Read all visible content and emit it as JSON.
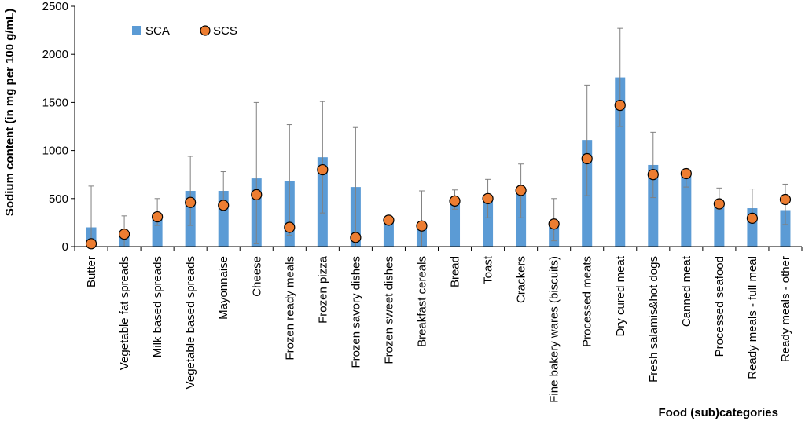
{
  "chart_data": {
    "type": "bar",
    "categories": [
      "Butter",
      "Vegetable fat spreads",
      "Milk based spreads",
      "Vegetable based spreads",
      "Mayonnaise",
      "Cheese",
      "Frozen ready meals",
      "Frozen pizza",
      "Frozen savory dishes",
      "Frozen sweet dishes",
      "Breakfast cereals",
      "Bread",
      "Toast",
      "Crackers",
      "Fine bakery wares (biscuits)",
      "Processed meats",
      "Dry cured meat",
      "Fresh salamis&hot dogs",
      "Canned meat",
      "Processed seafood",
      "Ready meals - full meal",
      "Ready meals - other"
    ],
    "series": [
      {
        "name": "SCA",
        "style": "bar",
        "color": "#5B9BD5",
        "values": [
          200,
          120,
          320,
          580,
          580,
          710,
          680,
          930,
          620,
          280,
          210,
          490,
          500,
          580,
          240,
          1110,
          1760,
          850,
          740,
          450,
          400,
          380
        ],
        "error_high": [
          630,
          320,
          500,
          940,
          780,
          1500,
          1270,
          1510,
          1240,
          320,
          580,
          590,
          700,
          860,
          500,
          1680,
          2270,
          1190,
          800,
          610,
          600,
          650
        ],
        "error_low": [
          0,
          0,
          220,
          220,
          480,
          30,
          120,
          350,
          0,
          240,
          0,
          390,
          300,
          300,
          60,
          530,
          1250,
          510,
          620,
          390,
          280,
          230
        ]
      },
      {
        "name": "SCS",
        "style": "marker",
        "color": "#ED7D31",
        "values": [
          30,
          130,
          310,
          460,
          430,
          540,
          200,
          800,
          95,
          275,
          215,
          475,
          500,
          585,
          235,
          915,
          1470,
          750,
          760,
          445,
          295,
          490
        ]
      }
    ],
    "ylabel": "Sodium content (in mg per 100 g/mL)",
    "xlabel": "Food (sub)categories",
    "ylim": [
      0,
      2500
    ],
    "yticks": [
      0,
      500,
      1000,
      1500,
      2000,
      2500
    ],
    "grid": false,
    "legend_position": "top-left",
    "error_bar_color": "#808080",
    "axis_color": "#000000"
  }
}
